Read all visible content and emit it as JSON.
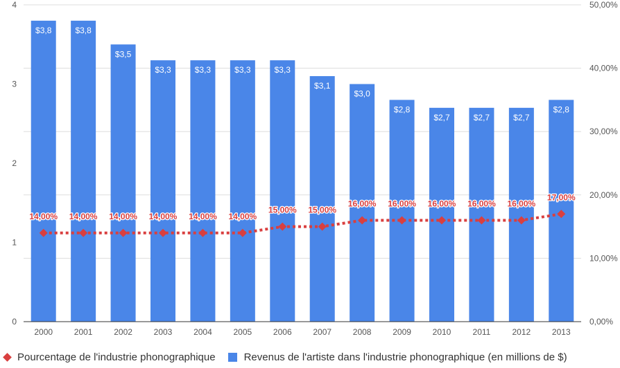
{
  "chart_data": {
    "type": "bar",
    "categories": [
      "2000",
      "2001",
      "2002",
      "2003",
      "2004",
      "2005",
      "2006",
      "2007",
      "2008",
      "2009",
      "2010",
      "2011",
      "2012",
      "2013"
    ],
    "series": [
      {
        "name": "Revenus de l'artiste dans l'industrie phonographique (en millions de $)",
        "type": "bar",
        "axis": "left",
        "color": "#4a86e8",
        "values": [
          3.8,
          3.8,
          3.5,
          3.3,
          3.3,
          3.3,
          3.3,
          3.1,
          3.0,
          2.8,
          2.7,
          2.7,
          2.7,
          2.8
        ],
        "labels": [
          "$3,8",
          "$3,8",
          "$3,5",
          "$3,3",
          "$3,3",
          "$3,3",
          "$3,3",
          "$3,1",
          "$3,0",
          "$2,8",
          "$2,7",
          "$2,7",
          "$2,7",
          "$2,8"
        ]
      },
      {
        "name": "Pourcentage de l'industrie phonographique",
        "type": "line",
        "style": "dotted",
        "marker": "diamond",
        "axis": "right",
        "color": "#d93f3f",
        "values": [
          14,
          14,
          14,
          14,
          14,
          14,
          15,
          15,
          16,
          16,
          16,
          16,
          16,
          17
        ],
        "labels": [
          "14,00%",
          "14,00%",
          "14,00%",
          "14,00%",
          "14,00%",
          "14,00%",
          "15,00%",
          "15,00%",
          "16,00%",
          "16,00%",
          "16,00%",
          "16,00%",
          "16,00%",
          "17,00%"
        ]
      }
    ],
    "left_axis": {
      "min": 0,
      "max": 4,
      "ticks": [
        "0",
        "1",
        "2",
        "3",
        "4"
      ]
    },
    "right_axis": {
      "min": 0,
      "max": 50,
      "ticks": [
        "0,00%",
        "10,00%",
        "20,00%",
        "30,00%",
        "40,00%",
        "50,00%"
      ]
    },
    "grid": true,
    "legend_position": "bottom"
  }
}
